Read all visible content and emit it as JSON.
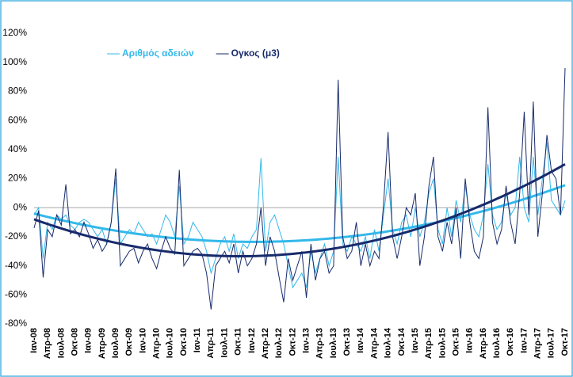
{
  "chart_data": {
    "type": "line",
    "categories": [
      "Ιαν-08",
      null,
      null,
      "Απρ-08",
      null,
      null,
      "Ιουλ-08",
      null,
      null,
      "Οκτ-08",
      null,
      null,
      "Ιαν-09",
      null,
      null,
      "Απρ-09",
      null,
      null,
      "Ιουλ-09",
      null,
      null,
      "Οκτ-09",
      null,
      null,
      "Ιαν-10",
      null,
      null,
      "Απρ-10",
      null,
      null,
      "Ιουλ-10",
      null,
      null,
      "Οκτ-10",
      null,
      null,
      "Ιαν-11",
      null,
      null,
      "Απρ-11",
      null,
      null,
      "Ιουλ-11",
      null,
      null,
      "Οκτ-11",
      null,
      null,
      "Ιαν-12",
      null,
      null,
      "Απρ-12",
      null,
      null,
      "Ιουλ-12",
      null,
      null,
      "Οκτ-12",
      null,
      null,
      "Ιαν-13",
      null,
      null,
      "Απρ-13",
      null,
      null,
      "Ιουλ-13",
      null,
      null,
      "Οκτ-13",
      null,
      null,
      "Ιαν-14",
      null,
      null,
      "Απρ-14",
      null,
      null,
      "Ιουλ-14",
      null,
      null,
      "Οκτ-14",
      null,
      null,
      "Ιαν-15",
      null,
      null,
      "Απρ-15",
      null,
      null,
      "Ιουλ-15",
      null,
      null,
      "Οκτ-15",
      null,
      null,
      "Ιαν-16",
      null,
      null,
      "Απρ-16",
      null,
      null,
      "Ιουλ-16",
      null,
      null,
      "Οκτ-16",
      null,
      null,
      "Ιαν-17",
      null,
      null,
      "Απρ-17",
      null,
      null,
      "Ιουλ-17",
      null,
      null,
      "Οκτ-17"
    ],
    "series": [
      {
        "name": "Αριθμός αδειών",
        "color": "#33b8ea",
        "values": [
          -5,
          0,
          -35,
          -10,
          -15,
          -5,
          -8,
          -5,
          -12,
          -15,
          -10,
          -8,
          -10,
          -15,
          -20,
          -15,
          -25,
          -10,
          20,
          -25,
          -20,
          -15,
          -18,
          -10,
          -15,
          -20,
          -18,
          -25,
          -15,
          -5,
          -10,
          -20,
          15,
          -25,
          -20,
          -10,
          -15,
          -20,
          -30,
          -45,
          -35,
          -25,
          -20,
          -30,
          -18,
          -35,
          -25,
          -28,
          -20,
          -15,
          34,
          -30,
          -10,
          -5,
          -15,
          -25,
          -40,
          -55,
          -50,
          -45,
          -55,
          -30,
          -45,
          -35,
          -25,
          -40,
          -30,
          35,
          -25,
          -30,
          -20,
          -25,
          -30,
          -20,
          -35,
          -15,
          -30,
          -5,
          20,
          -15,
          -25,
          -10,
          -5,
          -20,
          0,
          -20,
          -10,
          10,
          20,
          -15,
          -25,
          0,
          -20,
          5,
          -10,
          15,
          -5,
          -15,
          -20,
          -5,
          30,
          -5,
          -15,
          -10,
          10,
          -5,
          0,
          35,
          0,
          -10,
          35,
          -5,
          20,
          45,
          5,
          0,
          -5,
          5
        ]
      },
      {
        "name": "Ογκος  (μ3)",
        "color": "#172a6b",
        "values": [
          -14,
          -2,
          -48,
          -15,
          -20,
          -5,
          -12,
          16,
          -18,
          -15,
          -20,
          -10,
          -18,
          -28,
          -22,
          -30,
          -25,
          -10,
          27,
          -40,
          -35,
          -30,
          -28,
          -38,
          -30,
          -25,
          -35,
          -42,
          -30,
          -20,
          -28,
          -32,
          26,
          -40,
          -35,
          -30,
          -28,
          -32,
          -45,
          -70,
          -40,
          -35,
          -30,
          -38,
          -25,
          -45,
          -30,
          -40,
          -35,
          -25,
          0,
          -40,
          -20,
          -30,
          -48,
          -65,
          -35,
          -50,
          -40,
          -30,
          -62,
          -25,
          -50,
          -35,
          -30,
          -45,
          -40,
          88,
          -20,
          -35,
          -30,
          -10,
          -40,
          -25,
          -40,
          -30,
          -35,
          2,
          52,
          -20,
          -35,
          -20,
          0,
          -5,
          10,
          -40,
          -20,
          15,
          35,
          -20,
          -30,
          -10,
          -25,
          0,
          -35,
          20,
          -10,
          -30,
          -35,
          -20,
          69,
          -10,
          -25,
          -15,
          15,
          -10,
          -25,
          10,
          66,
          -5,
          73,
          -20,
          10,
          50,
          25,
          20,
          -5,
          96
        ]
      }
    ],
    "trendline": "polynomial",
    "ylim": [
      -80,
      120
    ],
    "yticks": [
      {
        "value": -80,
        "label": "-80%"
      },
      {
        "value": -60,
        "label": "-60%"
      },
      {
        "value": -40,
        "label": "-40%"
      },
      {
        "value": -20,
        "label": "-20%"
      },
      {
        "value": 0,
        "label": "0%"
      },
      {
        "value": 20,
        "label": "20%"
      },
      {
        "value": 40,
        "label": "40%"
      },
      {
        "value": 60,
        "label": "60%"
      },
      {
        "value": 80,
        "label": "80%"
      },
      {
        "value": 100,
        "label": "100%"
      },
      {
        "value": 120,
        "label": "120%"
      }
    ],
    "grid": false
  }
}
